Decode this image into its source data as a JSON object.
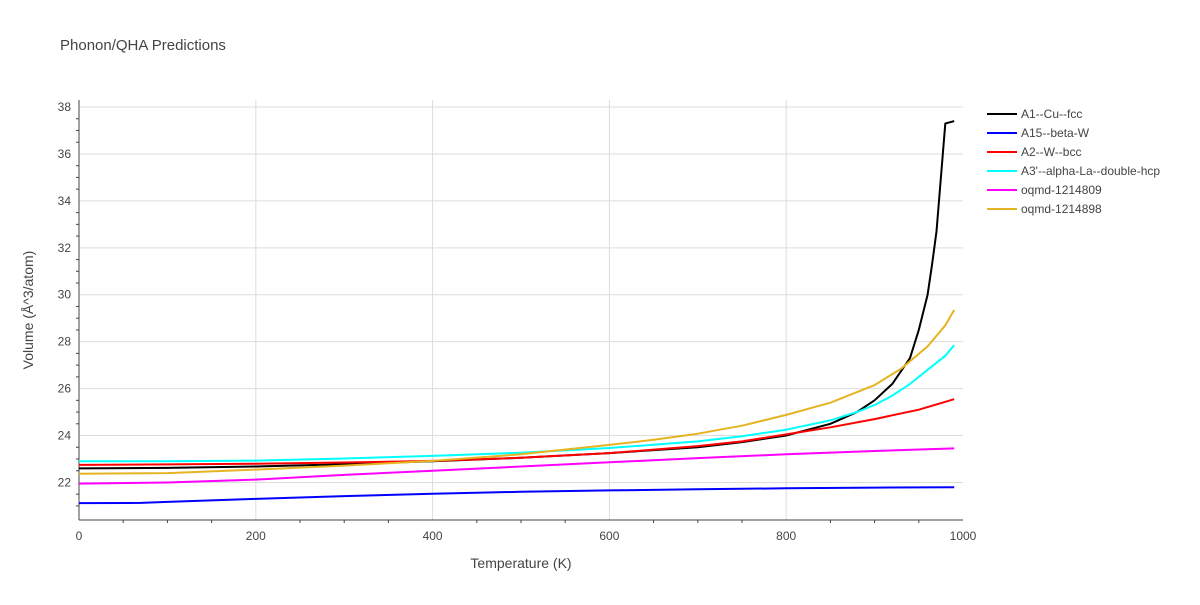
{
  "chart_data": {
    "type": "line",
    "title": "Phonon/QHA Predictions",
    "xlabel": "Temperature (K)",
    "ylabel": "Volume (Å^3/atom)",
    "xlim": [
      0,
      1000
    ],
    "ylim": [
      20.4,
      38.3
    ],
    "xticks": [
      0,
      200,
      400,
      600,
      800,
      1000
    ],
    "yticks": [
      22,
      24,
      26,
      28,
      30,
      32,
      34,
      36,
      38
    ],
    "grid": true,
    "legend_position": "top-right, outside plot",
    "series": [
      {
        "name": "A1--Cu--fcc",
        "color": "#000000",
        "x": [
          0,
          100,
          200,
          300,
          400,
          500,
          600,
          700,
          750,
          800,
          850,
          880,
          900,
          920,
          940,
          950,
          960,
          965,
          970,
          975,
          980,
          985,
          990
        ],
        "y": [
          22.6,
          22.62,
          22.68,
          22.78,
          22.9,
          23.05,
          23.25,
          23.5,
          23.72,
          24.0,
          24.5,
          25.0,
          25.5,
          26.2,
          27.3,
          28.5,
          30.0,
          31.3,
          32.7,
          35.0,
          37.3,
          37.35,
          37.4
        ]
      },
      {
        "name": "A15--beta-W",
        "color": "#0000ff",
        "x": [
          0,
          70,
          100,
          200,
          300,
          400,
          500,
          600,
          700,
          800,
          900,
          990
        ],
        "y": [
          21.12,
          21.13,
          21.17,
          21.3,
          21.42,
          21.52,
          21.6,
          21.66,
          21.71,
          21.75,
          21.78,
          21.8
        ]
      },
      {
        "name": "A2--W--bcc",
        "color": "#ff0000",
        "x": [
          0,
          100,
          200,
          300,
          400,
          500,
          600,
          700,
          750,
          800,
          850,
          900,
          950,
          990
        ],
        "y": [
          22.75,
          22.77,
          22.8,
          22.85,
          22.92,
          23.05,
          23.25,
          23.55,
          23.75,
          24.05,
          24.35,
          24.7,
          25.1,
          25.55
        ]
      },
      {
        "name": "A3'--alpha-La--double-hcp",
        "color": "#00ffff",
        "x": [
          0,
          100,
          200,
          300,
          400,
          500,
          600,
          700,
          750,
          800,
          850,
          880,
          900,
          920,
          940,
          960,
          980,
          990
        ],
        "y": [
          22.9,
          22.9,
          22.93,
          23.02,
          23.13,
          23.27,
          23.47,
          23.75,
          23.97,
          24.25,
          24.65,
          25.0,
          25.3,
          25.7,
          26.2,
          26.8,
          27.4,
          27.85
        ]
      },
      {
        "name": "oqmd-1214809",
        "color": "#ff00ff",
        "x": [
          0,
          100,
          200,
          300,
          400,
          500,
          600,
          700,
          800,
          900,
          990
        ],
        "y": [
          21.95,
          22.0,
          22.12,
          22.32,
          22.5,
          22.68,
          22.86,
          23.04,
          23.2,
          23.34,
          23.45
        ]
      },
      {
        "name": "oqmd-1214898",
        "color": "#e6b422",
        "x": [
          0,
          100,
          200,
          300,
          400,
          500,
          600,
          650,
          700,
          750,
          800,
          850,
          900,
          930,
          960,
          980,
          990
        ],
        "y": [
          22.37,
          22.4,
          22.55,
          22.72,
          22.92,
          23.2,
          23.6,
          23.82,
          24.08,
          24.42,
          24.88,
          25.4,
          26.15,
          26.85,
          27.8,
          28.7,
          29.35
        ]
      }
    ]
  }
}
